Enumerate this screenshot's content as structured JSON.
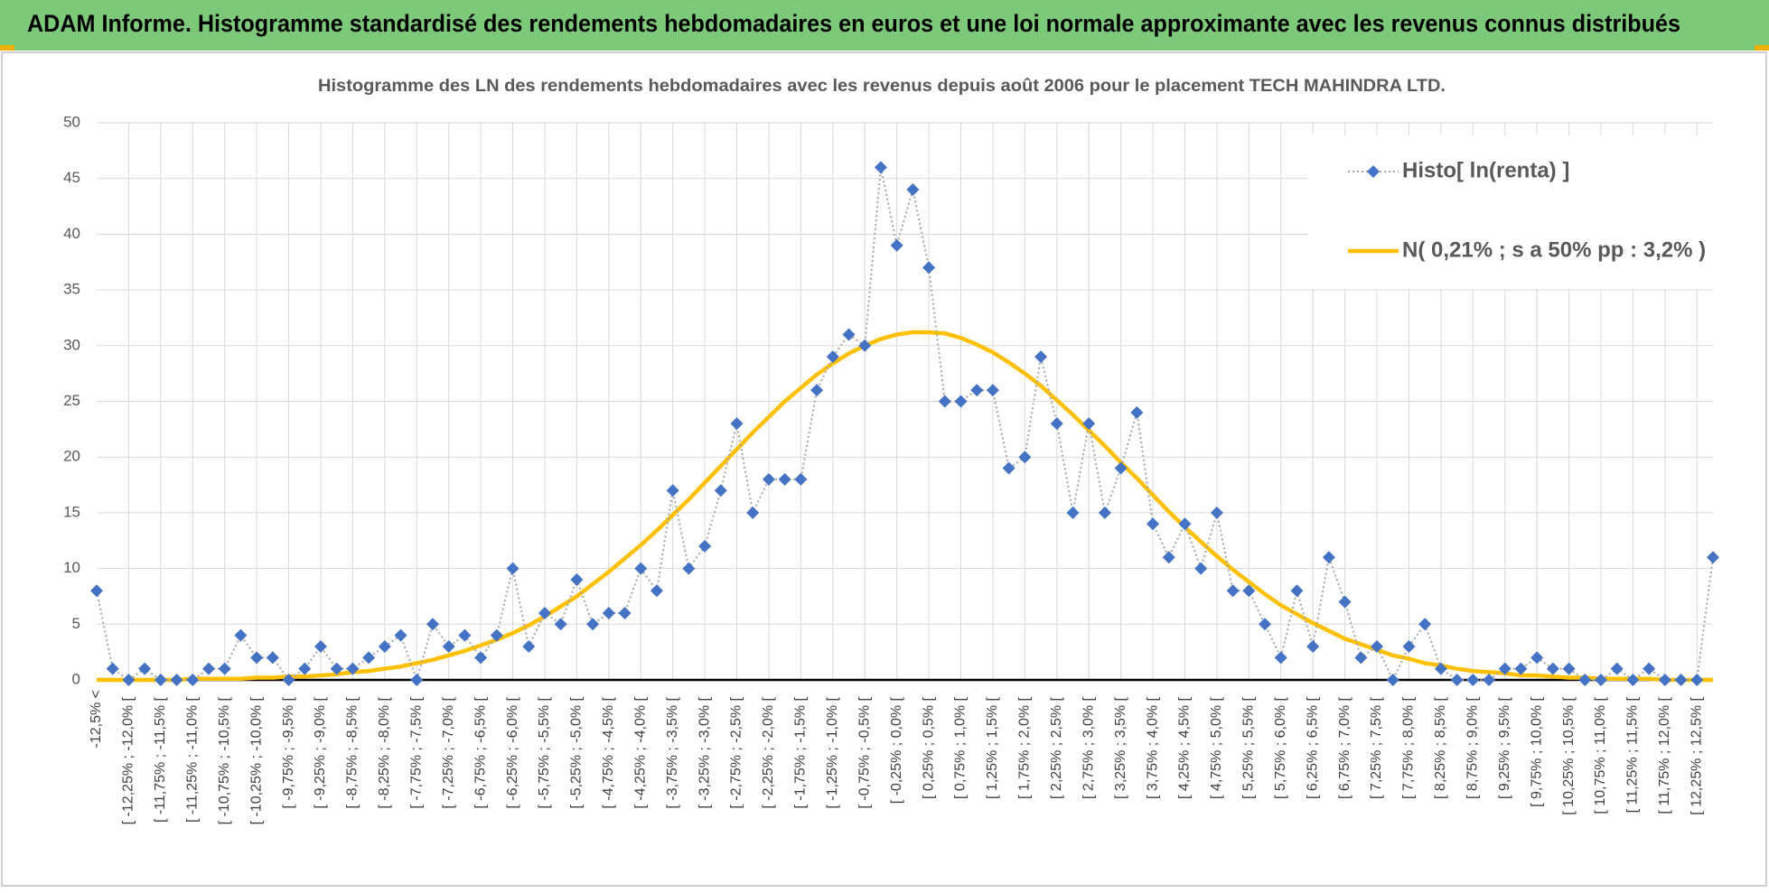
{
  "header": {
    "title": "ADAM Informe. Histogramme standardisé des rendements hebdomadaires en euros et une loi normale approximante avec les revenus connus distribués"
  },
  "chart_data": {
    "type": "line",
    "title": "Histogramme des LN des rendements hebdomadaires avec les revenus depuis août 2006 pour le placement TECH MAHINDRA LTD.",
    "categories": [
      "-12,5% <",
      null,
      "[ -12,25% ; -12,0% [",
      null,
      "[ -11,75% ; -11,5% [",
      null,
      "[ -11,25% ; -11,0% [",
      null,
      "[ -10,75% ; -10,5% [",
      null,
      "[ -10,25% ; -10,0% [",
      null,
      "[ -9,75% ; -9,5% [",
      null,
      "[ -9,25% ; -9,0% [",
      null,
      "[ -8,75% ; -8,5% [",
      null,
      "[ -8,25% ; -8,0% [",
      null,
      "[ -7,75% ; -7,5% [",
      null,
      "[ -7,25% ; -7,0% [",
      null,
      "[ -6,75% ; -6,5% [",
      null,
      "[ -6,25% ; -6,0% [",
      null,
      "[ -5,75% ; -5,5% [",
      null,
      "[ -5,25% ; -5,0% [",
      null,
      "[ -4,75% ; -4,5% [",
      null,
      "[ -4,25% ; -4,0% [",
      null,
      "[ -3,75% ; -3,5% [",
      null,
      "[ -3,25% ; -3,0% [",
      null,
      "[ -2,75% ; -2,5% [",
      null,
      "[ -2,25% ; -2,0% [",
      null,
      "[ -1,75% ; -1,5% [",
      null,
      "[ -1,25% ; -1,0% [",
      null,
      "[ -0,75% ; -0,5% [",
      null,
      "[ -0,25% ; 0,0% [",
      null,
      "[ 0,25% ; 0,5% [",
      null,
      "[ 0,75% ; 1,0% [",
      null,
      "[ 1,25% ; 1,5% [",
      null,
      "[ 1,75% ; 2,0% [",
      null,
      "[ 2,25% ; 2,5% [",
      null,
      "[ 2,75% ; 3,0% [",
      null,
      "[ 3,25% ; 3,5% [",
      null,
      "[ 3,75% ; 4,0% [",
      null,
      "[ 4,25% ; 4,5% [",
      null,
      "[ 4,75% ; 5,0% [",
      null,
      "[ 5,25% ; 5,5% [",
      null,
      "[ 5,75% ; 6,0% [",
      null,
      "[ 6,25% ; 6,5% [",
      null,
      "[ 6,75% ; 7,0% [",
      null,
      "[ 7,25% ; 7,5% [",
      null,
      "[ 7,75% ; 8,0% [",
      null,
      "[ 8,25% ; 8,5% [",
      null,
      "[ 8,75% ; 9,0% [",
      null,
      "[ 9,25% ; 9,5% [",
      null,
      "[ 9,75% ; 10,0% [",
      null,
      "[ 10,25% ; 10,5% [",
      null,
      "[ 10,75% ; 11,0% [",
      null,
      "[ 11,25% ; 11,5% [",
      null,
      "[ 11,75% ; 12,0% [",
      null,
      "[ 12,25% ; 12,5% [",
      null
    ],
    "series": [
      {
        "name": "Histo[ ln(renta) ]",
        "color": "#4472c4",
        "line_color": "#a5a5a5",
        "values": [
          8,
          1,
          0,
          1,
          0,
          0,
          0,
          1,
          1,
          4,
          2,
          2,
          0,
          1,
          3,
          1,
          1,
          2,
          3,
          4,
          0,
          5,
          3,
          4,
          2,
          4,
          10,
          3,
          6,
          5,
          9,
          5,
          6,
          6,
          10,
          8,
          17,
          10,
          12,
          17,
          23,
          15,
          18,
          18,
          18,
          26,
          29,
          31,
          30,
          46,
          39,
          44,
          37,
          25,
          25,
          26,
          26,
          19,
          20,
          29,
          23,
          15,
          23,
          15,
          19,
          24,
          14,
          11,
          14,
          10,
          15,
          8,
          8,
          5,
          2,
          8,
          3,
          11,
          7,
          2,
          3,
          0,
          3,
          5,
          1,
          0,
          0,
          0,
          1,
          1,
          2,
          1,
          1,
          0,
          0,
          1,
          0,
          1,
          0,
          0,
          0,
          11
        ]
      },
      {
        "name": "N( 0,21% ; s a 50% pp : 3,2% )",
        "color": "#ffc000",
        "values": [
          0,
          0,
          0,
          0,
          0,
          0,
          0.1,
          0.1,
          0.1,
          0.1,
          0.2,
          0.2,
          0.3,
          0.3,
          0.4,
          0.5,
          0.7,
          0.8,
          1.0,
          1.2,
          1.5,
          1.8,
          2.2,
          2.6,
          3.1,
          3.6,
          4.2,
          4.9,
          5.7,
          6.6,
          7.5,
          8.6,
          9.7,
          10.9,
          12.1,
          13.4,
          14.8,
          16.2,
          17.7,
          19.2,
          20.7,
          22.2,
          23.6,
          25.0,
          26.2,
          27.4,
          28.4,
          29.3,
          30.0,
          30.6,
          31.0,
          31.2,
          31.2,
          31.1,
          30.7,
          30.1,
          29.4,
          28.5,
          27.5,
          26.4,
          25.1,
          23.8,
          22.4,
          21.0,
          19.5,
          18.1,
          16.6,
          15.1,
          13.7,
          12.4,
          11.1,
          9.9,
          8.8,
          7.7,
          6.7,
          5.9,
          5.1,
          4.4,
          3.7,
          3.2,
          2.7,
          2.2,
          1.9,
          1.5,
          1.3,
          1.0,
          0.8,
          0.7,
          0.6,
          0.4,
          0.4,
          0.3,
          0.2,
          0.2,
          0.1,
          0.1,
          0.1,
          0.1,
          0,
          0,
          0,
          0
        ]
      }
    ],
    "ylim": [
      0,
      50
    ],
    "yticks": [
      0,
      5,
      10,
      15,
      20,
      25,
      30,
      35,
      40,
      45,
      50
    ],
    "grid": true,
    "legend": "upper right"
  }
}
